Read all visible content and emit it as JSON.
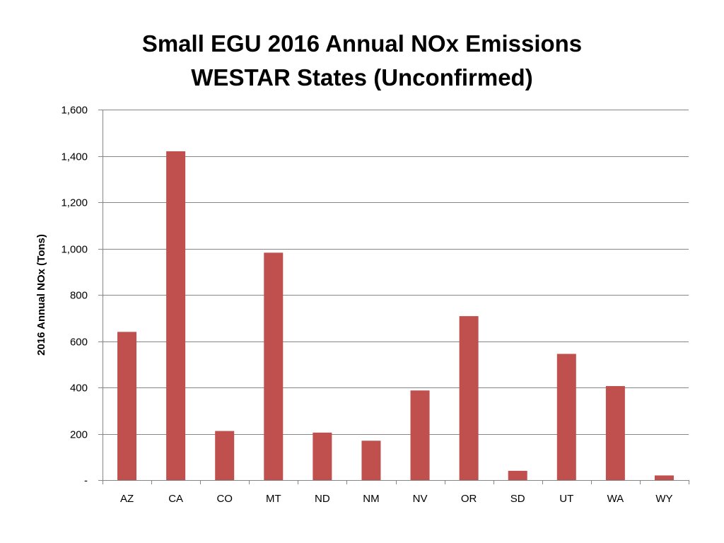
{
  "chart_data": {
    "type": "bar",
    "title": "Small EGU 2016 Annual NOx Emissions",
    "subtitle": "WESTAR States (Unconfirmed)",
    "xlabel": "",
    "ylabel": "2016 Annual NOx (Tons)",
    "ylim": [
      0,
      1600
    ],
    "yticks": [
      0,
      200,
      400,
      600,
      800,
      1000,
      1200,
      1400,
      1600
    ],
    "ytick_labels": [
      "-",
      "200",
      "400",
      "600",
      "800",
      "1,000",
      "1,200",
      "1,400",
      "1,600"
    ],
    "categories": [
      "AZ",
      "CA",
      "CO",
      "MT",
      "ND",
      "NM",
      "NV",
      "OR",
      "SD",
      "UT",
      "WA",
      "WY"
    ],
    "values": [
      640,
      1420,
      212,
      982,
      205,
      170,
      387,
      708,
      40,
      545,
      406,
      20
    ],
    "grid": true,
    "legend": "none",
    "bar_color": "#c0504d",
    "grid_color": "#868686",
    "axis_color": "#868686"
  }
}
